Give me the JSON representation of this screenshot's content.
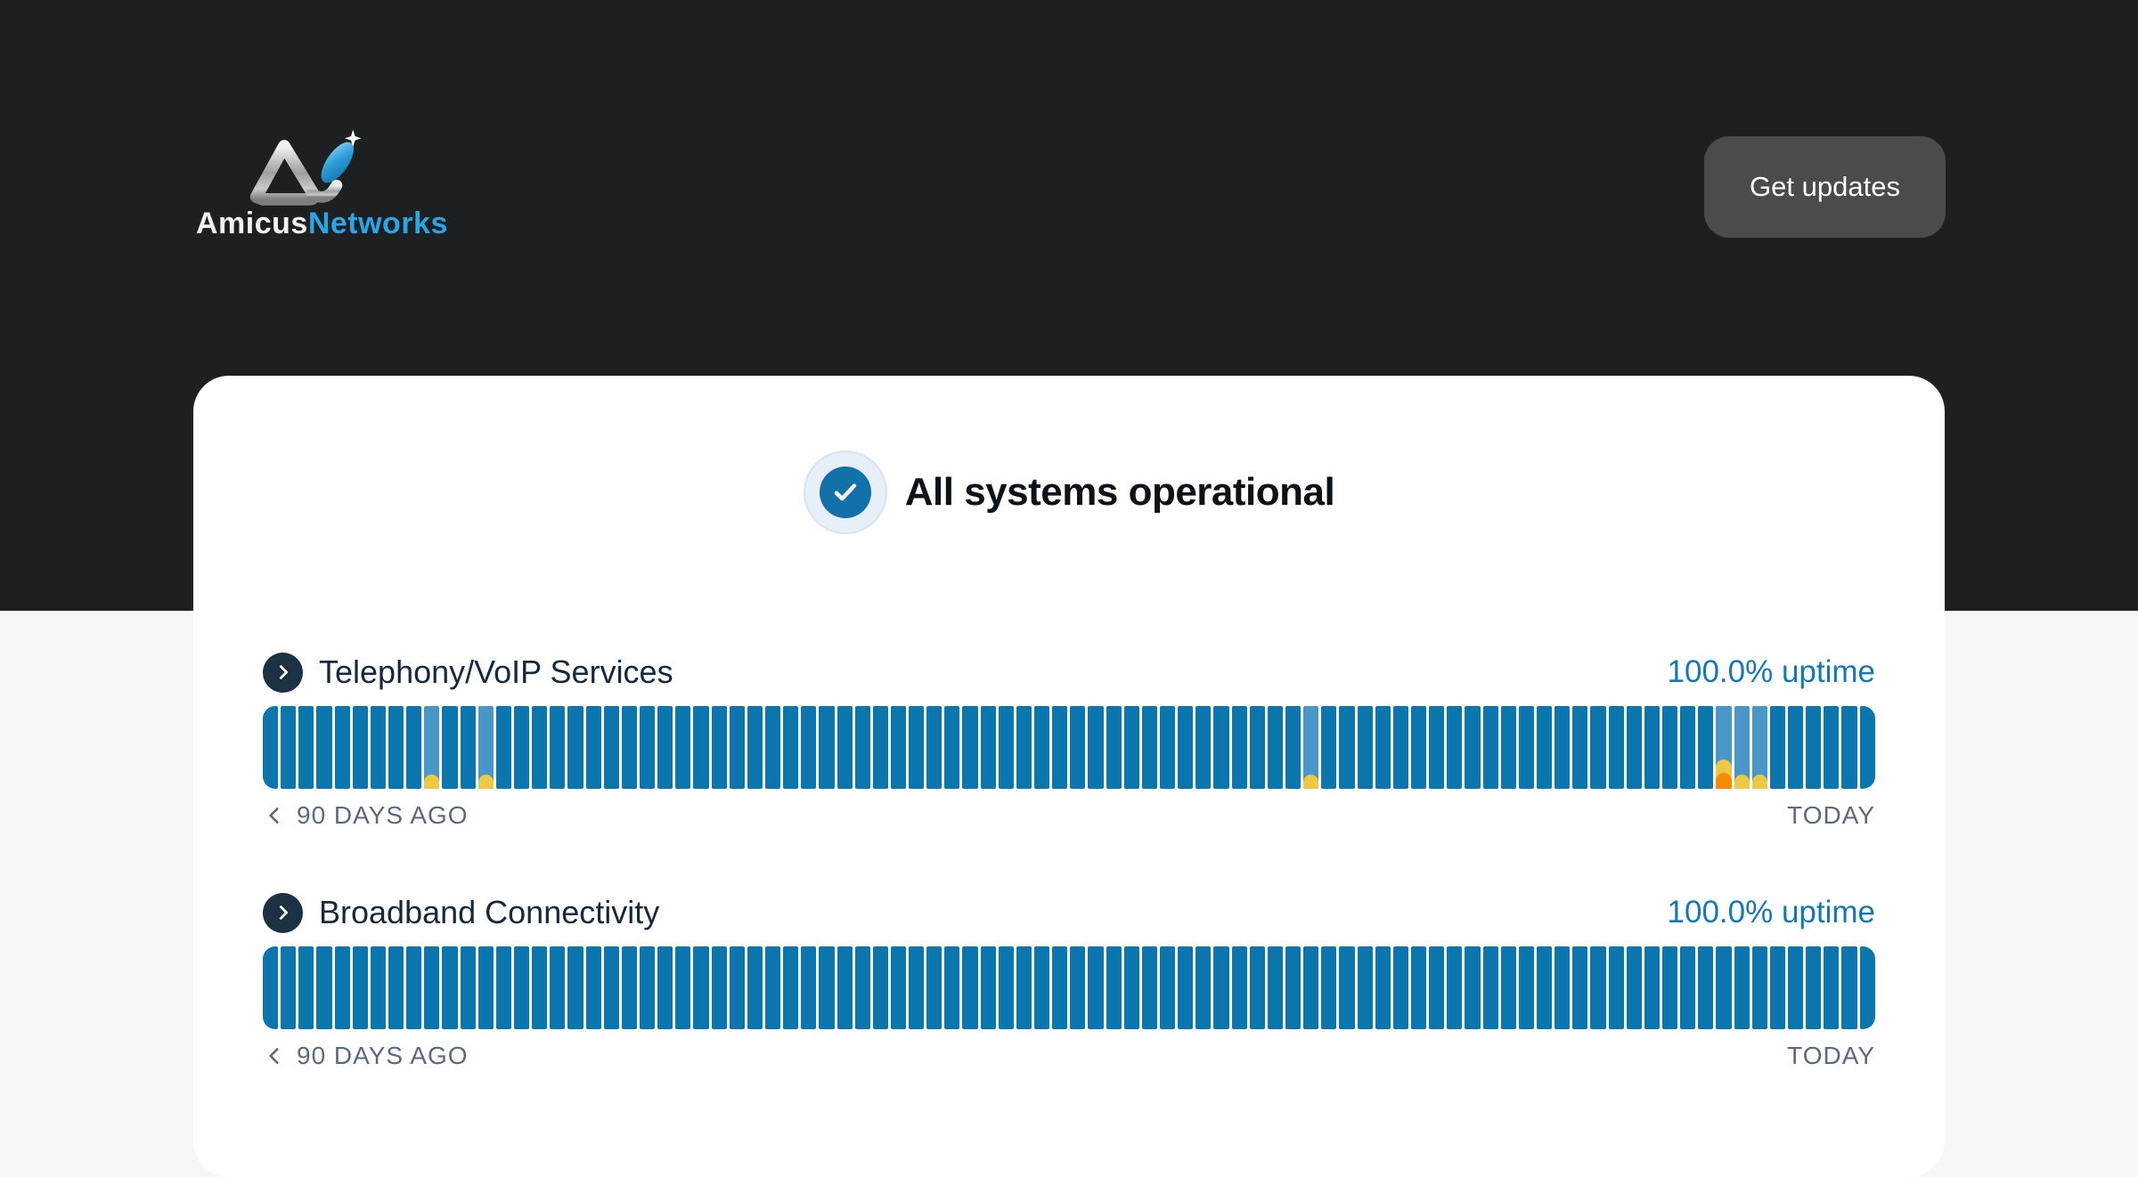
{
  "header": {
    "logo": {
      "brand_first": "Amicus",
      "brand_second": "Networks",
      "accent_color": "#2aa5e6"
    },
    "get_updates_label": "Get updates"
  },
  "status_banner": {
    "label": "All systems operational"
  },
  "uptime_labels": {
    "left": "90 DAYS AGO",
    "right": "TODAY"
  },
  "services": [
    {
      "name": "Telephony/VoIP Services",
      "uptime": "100.0% uptime",
      "total_days": 90,
      "incidents": [
        {
          "day": 9,
          "severity": "minor"
        },
        {
          "day": 12,
          "severity": "minor"
        },
        {
          "day": 58,
          "severity": "minor"
        },
        {
          "day": 81,
          "severity": "major"
        },
        {
          "day": 82,
          "severity": "minor"
        },
        {
          "day": 83,
          "severity": "minor"
        }
      ]
    },
    {
      "name": "Broadband Connectivity",
      "uptime": "100.0% uptime",
      "total_days": 90,
      "incidents": []
    }
  ],
  "colors": {
    "header_background": "#1e1f21",
    "page_background": "#f6f7f9",
    "card_background": "#ffffff",
    "bar_ok": "#0b76ae",
    "bar_incident_day": "#4897c8",
    "incident_minor": "#ecc844",
    "incident_major": "#f88b05",
    "uptime_text": "#1478b8",
    "status_check_circle": "#1371a9"
  }
}
